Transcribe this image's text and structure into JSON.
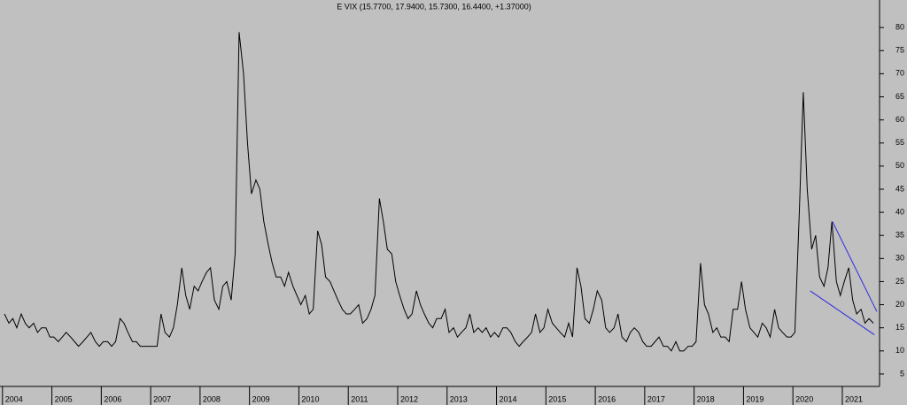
{
  "chart_data": {
    "type": "line",
    "title": "E VIX (15.7700, 17.9400, 15.7300, 16.4400, +1.37000)",
    "color": "#000000",
    "x": [
      2004.04,
      2004.13,
      2004.21,
      2004.29,
      2004.38,
      2004.46,
      2004.54,
      2004.63,
      2004.71,
      2004.79,
      2004.88,
      2004.96,
      2005.04,
      2005.13,
      2005.21,
      2005.29,
      2005.38,
      2005.46,
      2005.54,
      2005.63,
      2005.71,
      2005.79,
      2005.88,
      2005.96,
      2006.04,
      2006.13,
      2006.21,
      2006.29,
      2006.38,
      2006.46,
      2006.54,
      2006.63,
      2006.71,
      2006.79,
      2006.88,
      2006.96,
      2007.04,
      2007.13,
      2007.21,
      2007.29,
      2007.38,
      2007.46,
      2007.54,
      2007.63,
      2007.71,
      2007.79,
      2007.88,
      2007.96,
      2008.04,
      2008.13,
      2008.21,
      2008.29,
      2008.38,
      2008.46,
      2008.54,
      2008.63,
      2008.71,
      2008.79,
      2008.88,
      2008.96,
      2009.04,
      2009.13,
      2009.21,
      2009.29,
      2009.38,
      2009.46,
      2009.54,
      2009.63,
      2009.71,
      2009.79,
      2009.88,
      2009.96,
      2010.04,
      2010.13,
      2010.21,
      2010.29,
      2010.38,
      2010.46,
      2010.54,
      2010.63,
      2010.71,
      2010.79,
      2010.88,
      2010.96,
      2011.04,
      2011.13,
      2011.21,
      2011.29,
      2011.38,
      2011.46,
      2011.54,
      2011.63,
      2011.71,
      2011.79,
      2011.88,
      2011.96,
      2012.04,
      2012.13,
      2012.21,
      2012.29,
      2012.38,
      2012.46,
      2012.54,
      2012.63,
      2012.71,
      2012.79,
      2012.88,
      2012.96,
      2013.04,
      2013.13,
      2013.21,
      2013.29,
      2013.38,
      2013.46,
      2013.54,
      2013.63,
      2013.71,
      2013.79,
      2013.88,
      2013.96,
      2014.04,
      2014.13,
      2014.21,
      2014.29,
      2014.38,
      2014.46,
      2014.54,
      2014.63,
      2014.71,
      2014.79,
      2014.88,
      2014.96,
      2015.04,
      2015.13,
      2015.21,
      2015.29,
      2015.38,
      2015.46,
      2015.54,
      2015.63,
      2015.71,
      2015.79,
      2015.88,
      2015.96,
      2016.04,
      2016.13,
      2016.21,
      2016.29,
      2016.38,
      2016.46,
      2016.54,
      2016.63,
      2016.71,
      2016.79,
      2016.88,
      2016.96,
      2017.04,
      2017.13,
      2017.21,
      2017.29,
      2017.38,
      2017.46,
      2017.54,
      2017.63,
      2017.71,
      2017.79,
      2017.88,
      2017.96,
      2018.04,
      2018.13,
      2018.21,
      2018.29,
      2018.38,
      2018.46,
      2018.54,
      2018.63,
      2018.71,
      2018.79,
      2018.88,
      2018.96,
      2019.04,
      2019.13,
      2019.21,
      2019.29,
      2019.38,
      2019.46,
      2019.54,
      2019.63,
      2019.71,
      2019.79,
      2019.88,
      2019.96,
      2020.04,
      2020.13,
      2020.21,
      2020.29,
      2020.38,
      2020.46,
      2020.54,
      2020.63,
      2020.71,
      2020.79,
      2020.88,
      2020.96,
      2021.04,
      2021.13,
      2021.21,
      2021.29,
      2021.38,
      2021.46,
      2021.54,
      2021.63
    ],
    "values": [
      18,
      16,
      17,
      15,
      18,
      16,
      15,
      16,
      14,
      15,
      15,
      13,
      13,
      12,
      13,
      14,
      13,
      12,
      11,
      12,
      13,
      14,
      12,
      11,
      12,
      12,
      11,
      12,
      17,
      16,
      14,
      12,
      12,
      11,
      11,
      11,
      11,
      11,
      18,
      14,
      13,
      15,
      20,
      28,
      22,
      19,
      24,
      23,
      25,
      27,
      28,
      21,
      19,
      24,
      25,
      21,
      31,
      79,
      70,
      55,
      44,
      47,
      45,
      38,
      33,
      29,
      26,
      26,
      24,
      27,
      24,
      22,
      20,
      22,
      18,
      19,
      36,
      33,
      26,
      25,
      23,
      21,
      19,
      18,
      18,
      19,
      20,
      16,
      17,
      19,
      22,
      43,
      38,
      32,
      31,
      25,
      22,
      19,
      17,
      18,
      23,
      20,
      18,
      16,
      15,
      17,
      17,
      19,
      14,
      15,
      13,
      14,
      15,
      18,
      14,
      15,
      14,
      15,
      13,
      14,
      13,
      15,
      15,
      14,
      12,
      11,
      12,
      13,
      14,
      18,
      14,
      15,
      19,
      16,
      15,
      14,
      13,
      16,
      13,
      28,
      24,
      17,
      16,
      19,
      23,
      21,
      15,
      14,
      15,
      18,
      13,
      12,
      14,
      15,
      14,
      12,
      11,
      11,
      12,
      13,
      11,
      11,
      10,
      12,
      10,
      10,
      11,
      11,
      12,
      29,
      20,
      18,
      14,
      15,
      13,
      13,
      12,
      19,
      19,
      25,
      19,
      15,
      14,
      13,
      16,
      15,
      13,
      19,
      15,
      14,
      13,
      13,
      14,
      40,
      66,
      45,
      32,
      35,
      26,
      24,
      28,
      38,
      25,
      22,
      25,
      28,
      21,
      18,
      19,
      16,
      17,
      16
    ],
    "trendlines": [
      {
        "color": "#2a2ae0",
        "x": [
          2020.8,
          2021.7
        ],
        "y": [
          38,
          18.5
        ]
      },
      {
        "color": "#2a2ae0",
        "x": [
          2020.35,
          2021.65
        ],
        "y": [
          23,
          13.5
        ]
      }
    ],
    "xlim": [
      2003.95,
      2021.7
    ],
    "xticks": [
      2004,
      2005,
      2006,
      2007,
      2008,
      2009,
      2010,
      2011,
      2012,
      2013,
      2014,
      2015,
      2016,
      2017,
      2018,
      2019,
      2020,
      2021
    ],
    "ylim": [
      2.5,
      85
    ],
    "yticks": [
      5,
      10,
      15,
      20,
      25,
      30,
      35,
      40,
      45,
      50,
      55,
      60,
      65,
      70,
      75,
      80
    ]
  }
}
